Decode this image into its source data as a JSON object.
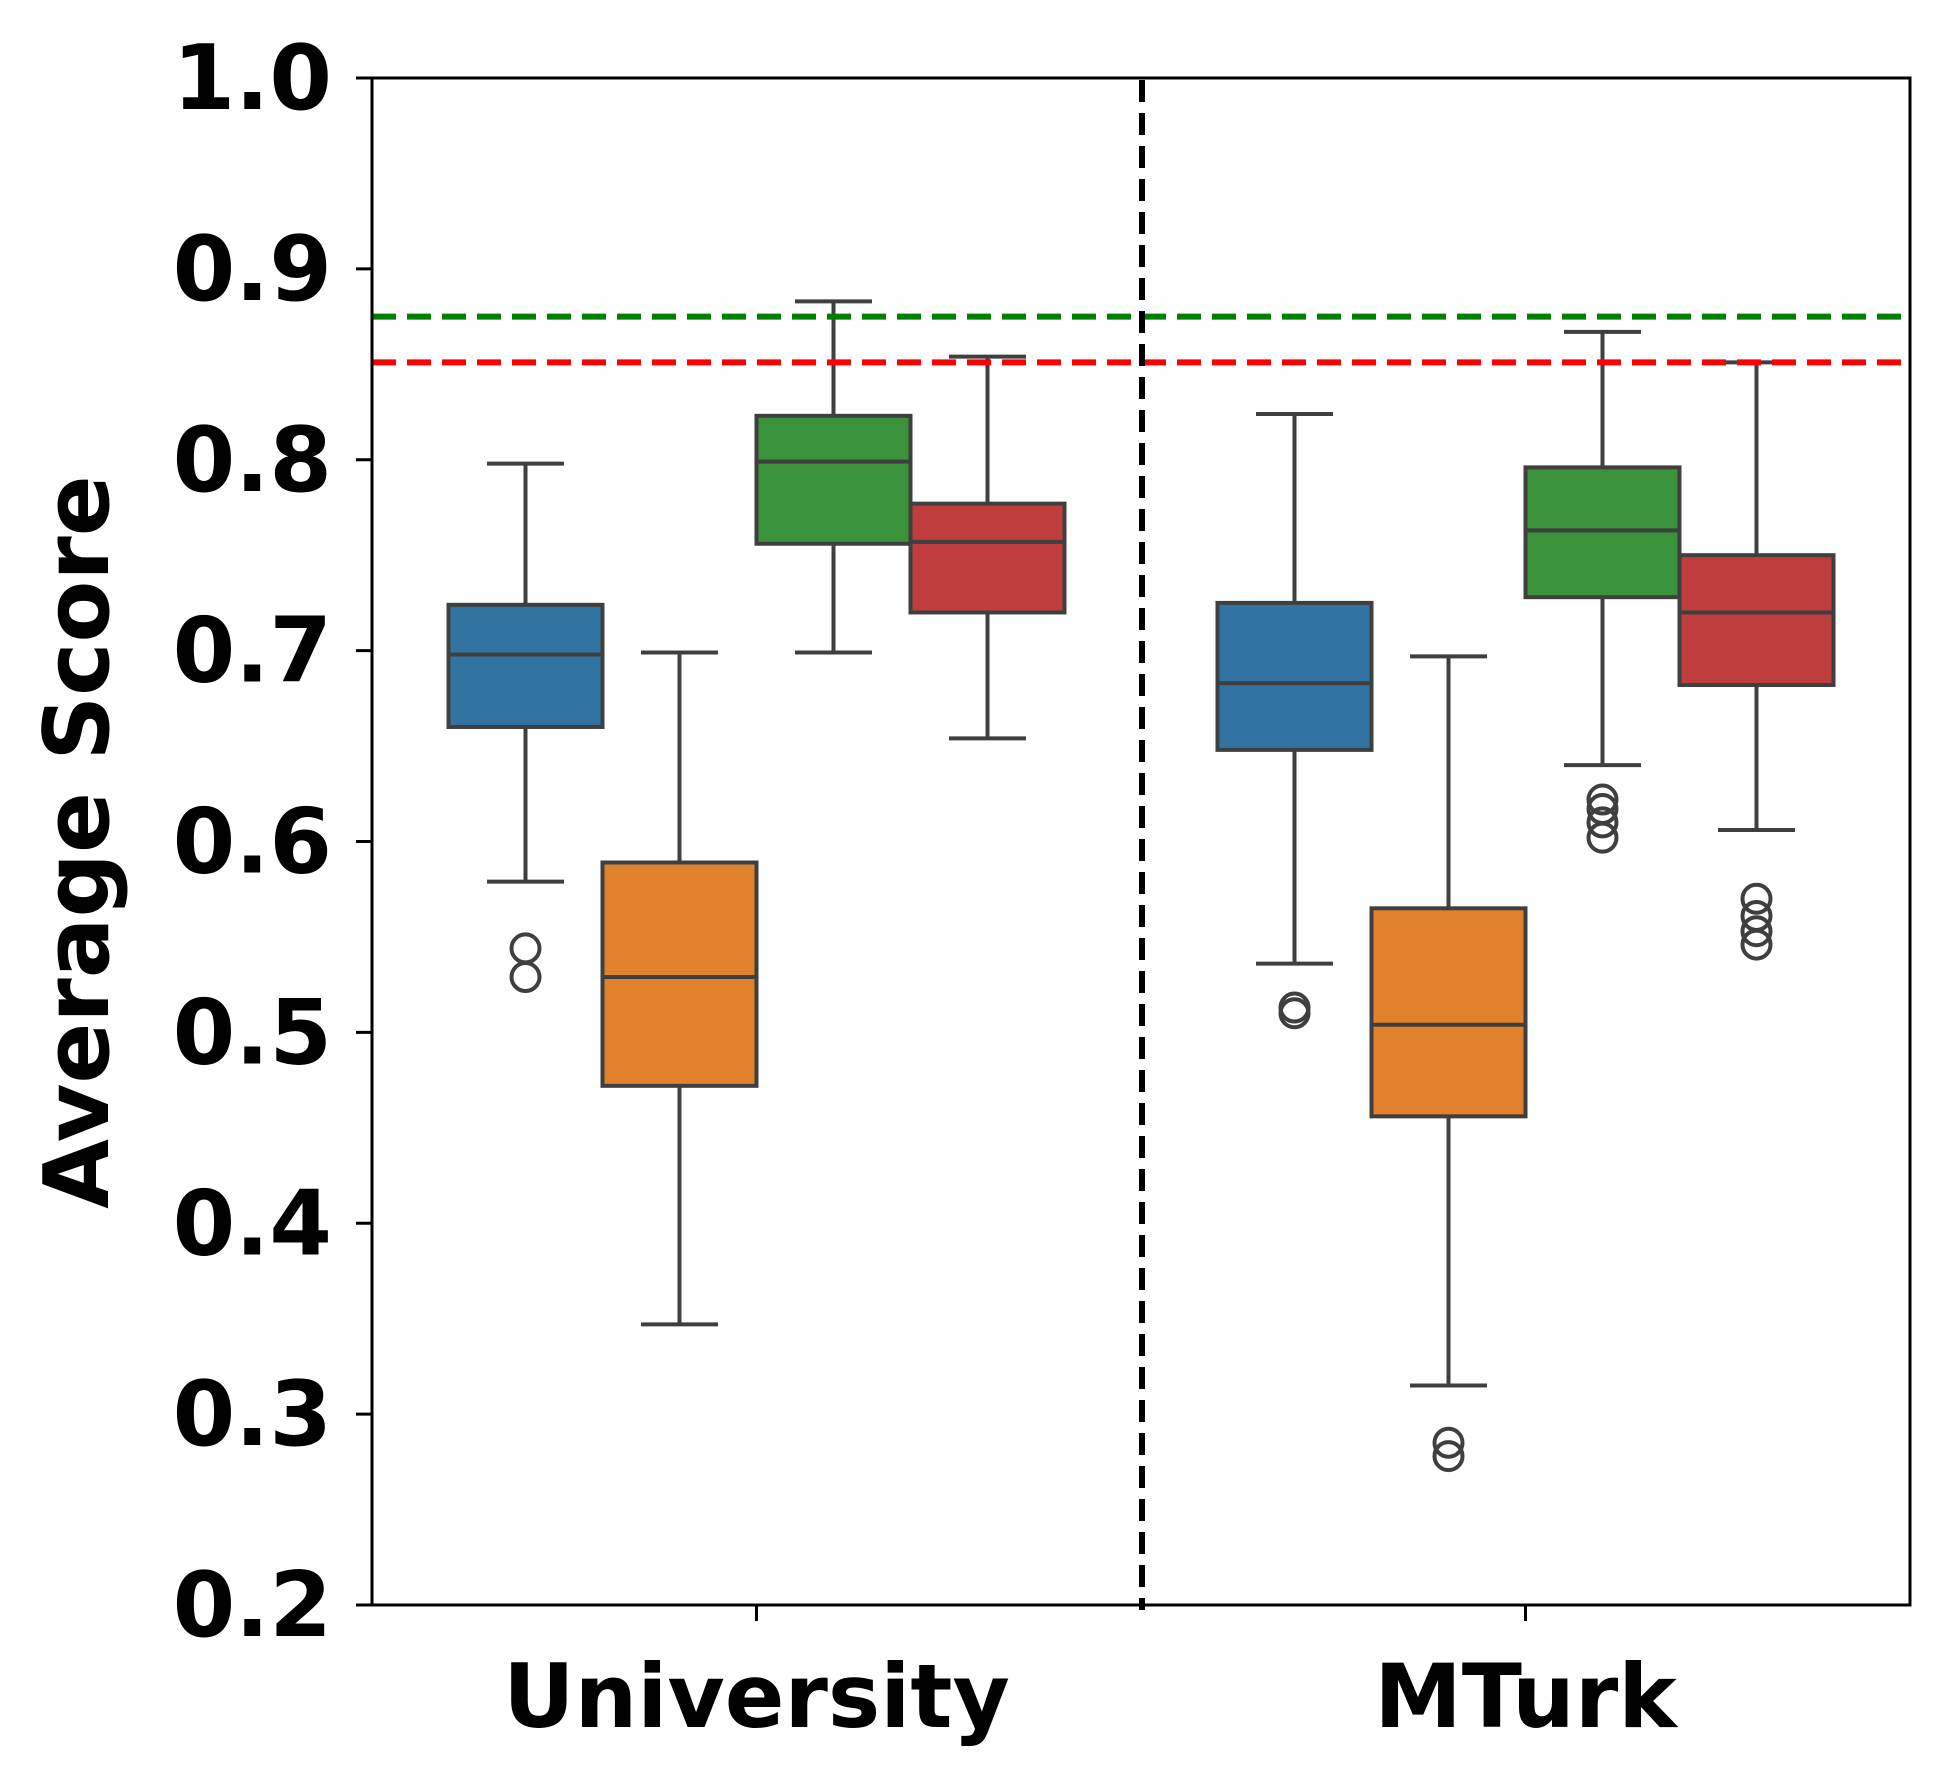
{
  "chart_data": {
    "type": "box",
    "title": "",
    "xlabel": "",
    "ylabel": "Average Score",
    "ylim": [
      0.2,
      1.0
    ],
    "yticks": [
      "0.2",
      "0.3",
      "0.4",
      "0.5",
      "0.6",
      "0.7",
      "0.8",
      "0.9",
      "1.0"
    ],
    "categories": [
      "University",
      "MTurk"
    ],
    "reference_lines": [
      {
        "color": "#008000",
        "y": 0.875,
        "style": "dashed"
      },
      {
        "color": "#ff0000",
        "y": 0.851,
        "style": "dashed"
      }
    ],
    "series": [
      {
        "color": "#3274a1",
        "boxes": [
          {
            "whisker_low": 0.579,
            "q1": 0.66,
            "median": 0.698,
            "q3": 0.724,
            "whisker_high": 0.798,
            "outliers": [
              0.544,
              0.529
            ]
          },
          {
            "whisker_low": 0.536,
            "q1": 0.648,
            "median": 0.683,
            "q3": 0.725,
            "whisker_high": 0.824,
            "outliers": [
              0.513,
              0.51
            ]
          }
        ]
      },
      {
        "color": "#e1812c",
        "boxes": [
          {
            "whisker_low": 0.347,
            "q1": 0.472,
            "median": 0.529,
            "q3": 0.589,
            "whisker_high": 0.699,
            "outliers": []
          },
          {
            "whisker_low": 0.315,
            "q1": 0.456,
            "median": 0.504,
            "q3": 0.565,
            "whisker_high": 0.697,
            "outliers": [
              0.285,
              0.278
            ]
          }
        ]
      },
      {
        "color": "#3a923a",
        "boxes": [
          {
            "whisker_low": 0.699,
            "q1": 0.756,
            "median": 0.799,
            "q3": 0.823,
            "whisker_high": 0.883,
            "outliers": []
          },
          {
            "whisker_low": 0.64,
            "q1": 0.728,
            "median": 0.763,
            "q3": 0.796,
            "whisker_high": 0.867,
            "outliers": [
              0.622,
              0.617,
              0.61,
              0.602
            ]
          }
        ]
      },
      {
        "color": "#c03d3e",
        "boxes": [
          {
            "whisker_low": 0.654,
            "q1": 0.72,
            "median": 0.757,
            "q3": 0.777,
            "whisker_high": 0.854,
            "outliers": []
          },
          {
            "whisker_low": 0.606,
            "q1": 0.682,
            "median": 0.72,
            "q3": 0.75,
            "whisker_high": 0.851,
            "outliers": [
              0.57,
              0.561,
              0.553,
              0.546
            ]
          }
        ]
      }
    ]
  }
}
